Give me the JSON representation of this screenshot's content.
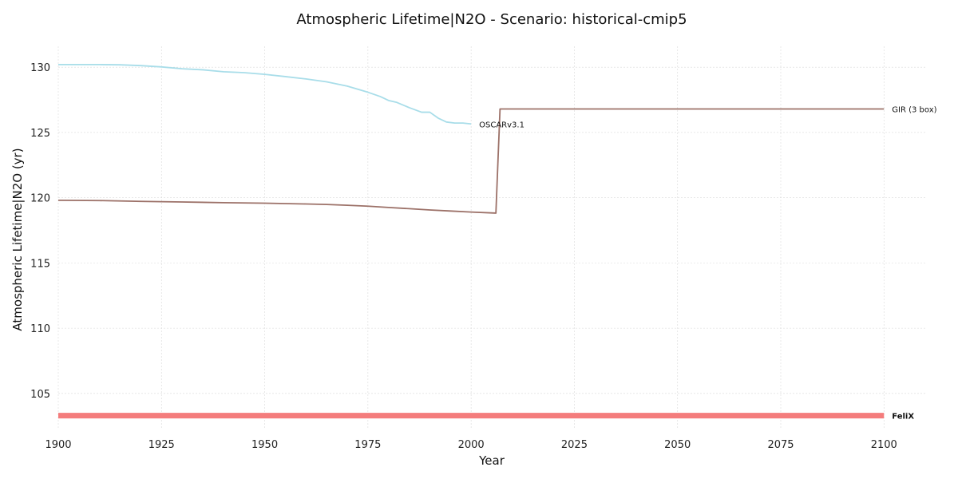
{
  "chart_data": {
    "type": "line",
    "title": "Atmospheric Lifetime|N2O - Scenario: historical-cmip5",
    "xlabel": "Year",
    "ylabel": "Atmospheric Lifetime|N2O (yr)",
    "xlim": [
      1900,
      2110
    ],
    "ylim": [
      102.3,
      131.6
    ],
    "xticks": [
      1900,
      1925,
      1950,
      1975,
      2000,
      2025,
      2050,
      2075,
      2100
    ],
    "yticks": [
      105,
      110,
      115,
      120,
      125,
      130
    ],
    "grid": true,
    "legend": "none (series labelled at line ends)",
    "series": [
      {
        "name": "OSCARv3.1",
        "color": "#a8dde9",
        "bold_label": false,
        "points": [
          [
            1900,
            130.2
          ],
          [
            1905,
            130.2
          ],
          [
            1910,
            130.2
          ],
          [
            1915,
            130.18
          ],
          [
            1920,
            130.12
          ],
          [
            1925,
            130.02
          ],
          [
            1930,
            129.88
          ],
          [
            1935,
            129.8
          ],
          [
            1940,
            129.65
          ],
          [
            1945,
            129.58
          ],
          [
            1950,
            129.45
          ],
          [
            1955,
            129.28
          ],
          [
            1960,
            129.1
          ],
          [
            1965,
            128.88
          ],
          [
            1970,
            128.55
          ],
          [
            1975,
            128.08
          ],
          [
            1978,
            127.75
          ],
          [
            1980,
            127.45
          ],
          [
            1982,
            127.3
          ],
          [
            1985,
            126.9
          ],
          [
            1988,
            126.55
          ],
          [
            1990,
            126.55
          ],
          [
            1992,
            126.1
          ],
          [
            1994,
            125.8
          ],
          [
            1996,
            125.72
          ],
          [
            1998,
            125.72
          ],
          [
            2000,
            125.65
          ]
        ]
      },
      {
        "name": "GIR (3 box)",
        "color": "#9c7168",
        "bold_label": false,
        "points": [
          [
            1900,
            119.8
          ],
          [
            1910,
            119.78
          ],
          [
            1920,
            119.72
          ],
          [
            1930,
            119.67
          ],
          [
            1940,
            119.62
          ],
          [
            1950,
            119.58
          ],
          [
            1960,
            119.52
          ],
          [
            1965,
            119.48
          ],
          [
            1970,
            119.42
          ],
          [
            1975,
            119.35
          ],
          [
            1980,
            119.25
          ],
          [
            1985,
            119.16
          ],
          [
            1990,
            119.06
          ],
          [
            1995,
            118.98
          ],
          [
            2000,
            118.9
          ],
          [
            2006,
            118.82
          ],
          [
            2007,
            126.8
          ],
          [
            2100,
            126.8
          ]
        ]
      },
      {
        "name": "FeliX",
        "color": "#f47c7c",
        "bold_label": true,
        "width": 7,
        "points": [
          [
            1900,
            103.3
          ],
          [
            2100,
            103.3
          ]
        ]
      }
    ]
  }
}
